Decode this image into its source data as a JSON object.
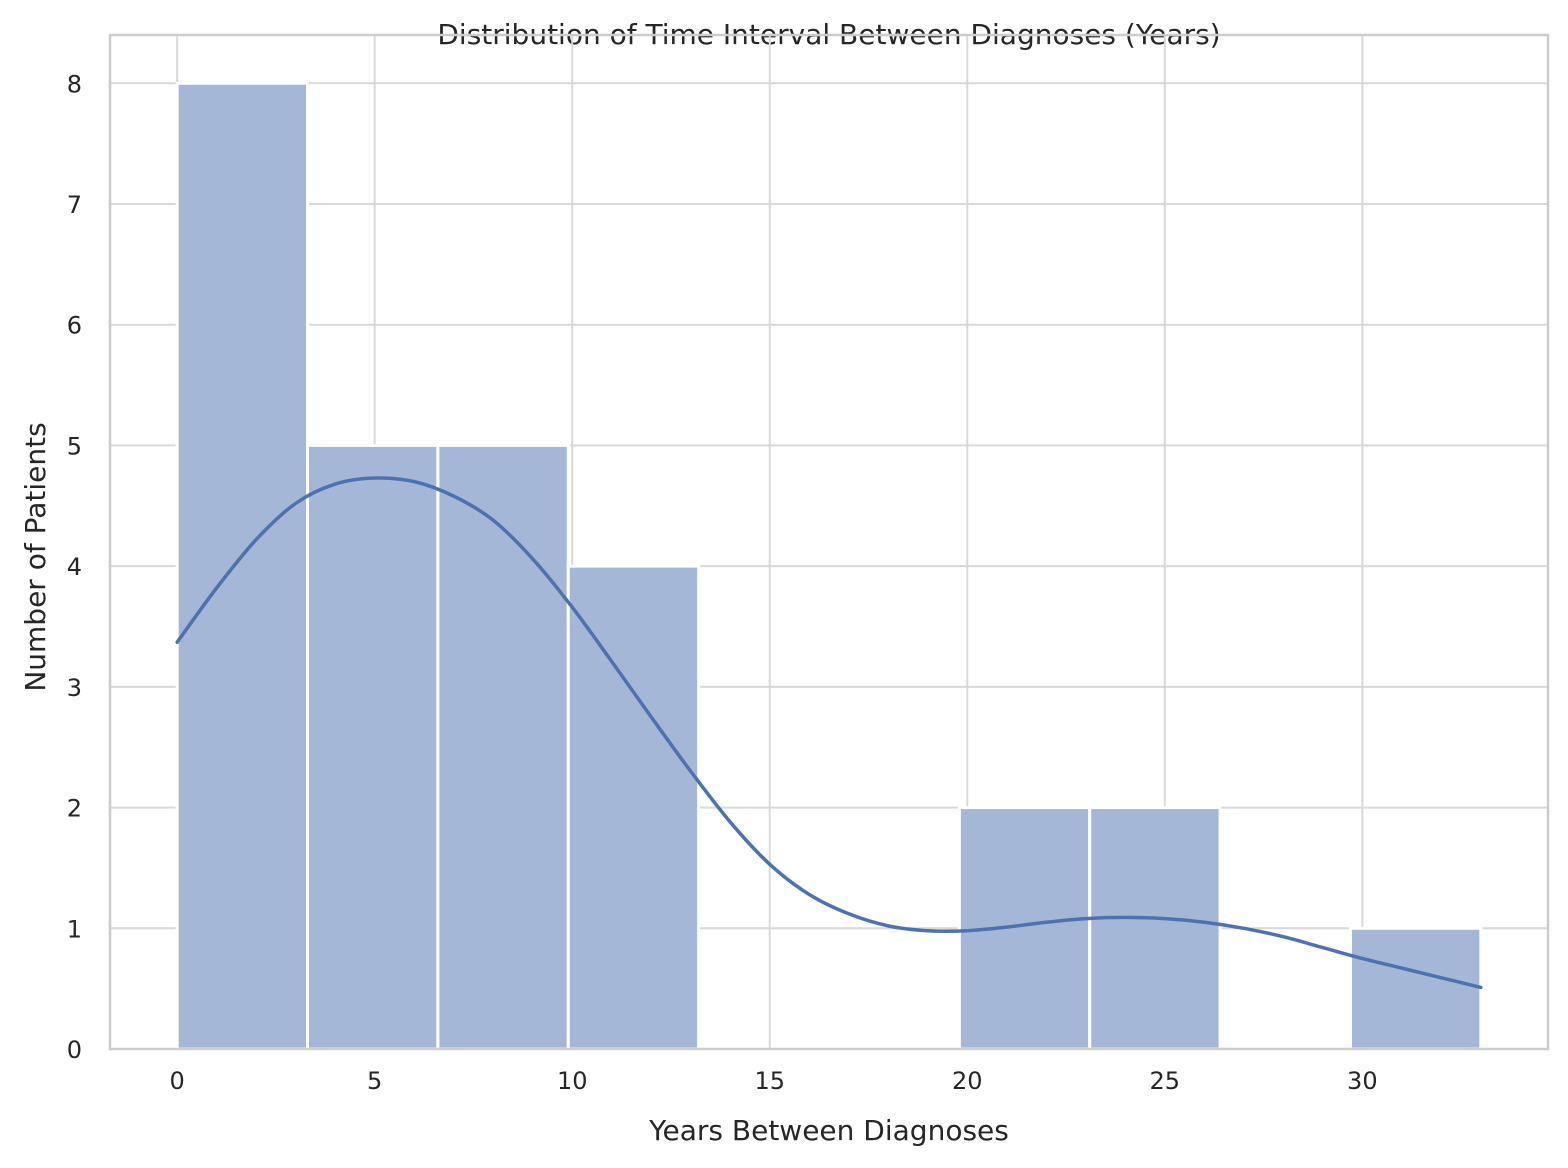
{
  "chart_data": {
    "type": "bar",
    "title": "Distribution of Time Interval Between Diagnoses (Years)",
    "xlabel": "Years Between Diagnoses",
    "ylabel": "Number of Patients",
    "xlim": [
      -1.7,
      34.7
    ],
    "ylim": [
      0,
      8.4
    ],
    "xticks": [
      0,
      5,
      10,
      15,
      20,
      25,
      30
    ],
    "yticks": [
      0,
      1,
      2,
      3,
      4,
      5,
      6,
      7,
      8
    ],
    "grid": true,
    "bins": [
      {
        "x0": 0.0,
        "x1": 3.3,
        "count": 8
      },
      {
        "x0": 3.3,
        "x1": 6.6,
        "count": 5
      },
      {
        "x0": 6.6,
        "x1": 9.9,
        "count": 5
      },
      {
        "x0": 9.9,
        "x1": 13.2,
        "count": 4
      },
      {
        "x0": 13.2,
        "x1": 16.5,
        "count": 0
      },
      {
        "x0": 16.5,
        "x1": 19.8,
        "count": 0
      },
      {
        "x0": 19.8,
        "x1": 23.1,
        "count": 2
      },
      {
        "x0": 23.1,
        "x1": 26.4,
        "count": 2
      },
      {
        "x0": 26.4,
        "x1": 29.7,
        "count": 0
      },
      {
        "x0": 29.7,
        "x1": 33.0,
        "count": 1
      }
    ],
    "kde": {
      "x": [
        0,
        1,
        2,
        3,
        4,
        5,
        6,
        7,
        8,
        9,
        10,
        11,
        12,
        13,
        14,
        15,
        16,
        17,
        18,
        19,
        20,
        21,
        22,
        23,
        24,
        25,
        26,
        27,
        28,
        29,
        30,
        31,
        32,
        33
      ],
      "y": [
        3.37,
        3.82,
        4.22,
        4.52,
        4.68,
        4.73,
        4.7,
        4.58,
        4.38,
        4.06,
        3.66,
        3.21,
        2.75,
        2.3,
        1.88,
        1.53,
        1.28,
        1.12,
        1.02,
        0.98,
        0.98,
        1.01,
        1.05,
        1.08,
        1.09,
        1.08,
        1.05,
        1.0,
        0.93,
        0.84,
        0.75,
        0.67,
        0.59,
        0.51
      ],
      "color": "#4c72b0"
    },
    "bar_color": "#a5b7d7"
  }
}
